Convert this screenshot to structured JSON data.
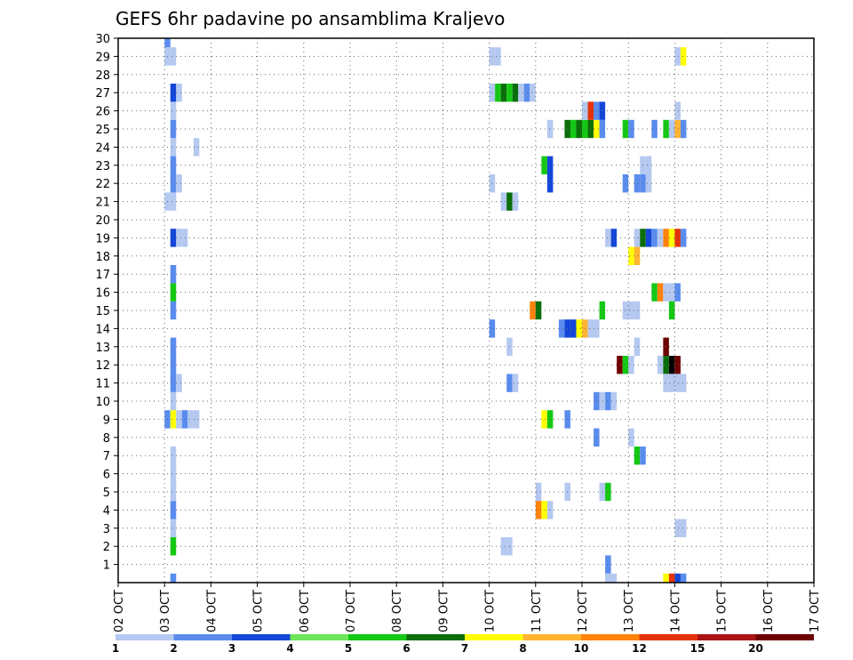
{
  "chart_data": {
    "type": "heatmap",
    "title": "GEFS 6hr padavine po ansamblima Kraljevo",
    "xlabel": "",
    "ylabel": "",
    "x_tick_labels": [
      "02 OCT",
      "03 OCT",
      "04 OCT",
      "05 OCT",
      "06 OCT",
      "07 OCT",
      "08 OCT",
      "09 OCT",
      "10 OCT",
      "11 OCT",
      "12 OCT",
      "13 OCT",
      "14 OCT",
      "15 OCT",
      "16 OCT",
      "17 OCT"
    ],
    "y_tick_labels": [
      "1",
      "2",
      "3",
      "4",
      "5",
      "6",
      "7",
      "8",
      "9",
      "10",
      "11",
      "12",
      "13",
      "14",
      "15",
      "16",
      "17",
      "18",
      "19",
      "20",
      "21",
      "22",
      "23",
      "24",
      "25",
      "26",
      "27",
      "28",
      "29",
      "30"
    ],
    "xlim": [
      0,
      60
    ],
    "ylim": [
      0,
      30
    ],
    "time_step_hours": 6,
    "members_axis": "ensemble member 0-30",
    "grid": true,
    "grid_style": "dotted",
    "colorbar": {
      "position": "bottom",
      "tick_labels": [
        "1",
        "2",
        "3",
        "4",
        "5",
        "6",
        "7",
        "8",
        "10",
        "12",
        "15",
        "20"
      ],
      "colors": [
        "#b4c8f0",
        "#5a8cee",
        "#1446d8",
        "#6ee65a",
        "#14c814",
        "#0a6e0a",
        "#ffff00",
        "#ffb432",
        "#ff820a",
        "#e6320a",
        "#aa1414",
        "#6e0000"
      ]
    },
    "cells": [
      {
        "x": 4.5,
        "y": 0,
        "v": 2
      },
      {
        "x": 4.5,
        "y": 2,
        "v": 5
      },
      {
        "x": 4.5,
        "y": 3,
        "v": 1
      },
      {
        "x": 4.5,
        "y": 4,
        "v": 2
      },
      {
        "x": 4.5,
        "y": 5,
        "v": 1
      },
      {
        "x": 4.5,
        "y": 6,
        "v": 1
      },
      {
        "x": 4.5,
        "y": 7,
        "v": 1
      },
      {
        "x": 4,
        "y": 9,
        "v": 2
      },
      {
        "x": 4.5,
        "y": 9,
        "v": 7
      },
      {
        "x": 5,
        "y": 9,
        "v": 1
      },
      {
        "x": 5.5,
        "y": 9,
        "v": 2
      },
      {
        "x": 6,
        "y": 9,
        "v": 1
      },
      {
        "x": 6.5,
        "y": 9,
        "v": 1
      },
      {
        "x": 4.5,
        "y": 10,
        "v": 1
      },
      {
        "x": 4.5,
        "y": 11,
        "v": 2
      },
      {
        "x": 5,
        "y": 11,
        "v": 1
      },
      {
        "x": 4.5,
        "y": 12,
        "v": 2
      },
      {
        "x": 4.5,
        "y": 13,
        "v": 2
      },
      {
        "x": 4.5,
        "y": 15,
        "v": 2
      },
      {
        "x": 4.5,
        "y": 16,
        "v": 5
      },
      {
        "x": 4.5,
        "y": 17,
        "v": 2
      },
      {
        "x": 4.5,
        "y": 19,
        "v": 3
      },
      {
        "x": 5,
        "y": 19,
        "v": 1
      },
      {
        "x": 5.5,
        "y": 19,
        "v": 1
      },
      {
        "x": 4,
        "y": 21,
        "v": 1
      },
      {
        "x": 4.5,
        "y": 21,
        "v": 1
      },
      {
        "x": 4.5,
        "y": 22,
        "v": 2
      },
      {
        "x": 5,
        "y": 22,
        "v": 1
      },
      {
        "x": 4.5,
        "y": 23,
        "v": 2
      },
      {
        "x": 4.5,
        "y": 24,
        "v": 1
      },
      {
        "x": 6.5,
        "y": 24,
        "v": 1
      },
      {
        "x": 4.5,
        "y": 25,
        "v": 2
      },
      {
        "x": 4.5,
        "y": 26,
        "v": 1
      },
      {
        "x": 4.5,
        "y": 27,
        "v": 3
      },
      {
        "x": 5,
        "y": 27,
        "v": 1
      },
      {
        "x": 4,
        "y": 29,
        "v": 1
      },
      {
        "x": 4.5,
        "y": 29,
        "v": 1
      },
      {
        "x": 4,
        "y": 30,
        "v": 2
      },
      {
        "x": 32,
        "y": 29,
        "v": 1
      },
      {
        "x": 32.5,
        "y": 29,
        "v": 1
      },
      {
        "x": 32,
        "y": 27,
        "v": 1
      },
      {
        "x": 32.5,
        "y": 27,
        "v": 5
      },
      {
        "x": 33,
        "y": 27,
        "v": 6
      },
      {
        "x": 33.5,
        "y": 27,
        "v": 5
      },
      {
        "x": 34,
        "y": 27,
        "v": 6
      },
      {
        "x": 34.5,
        "y": 27,
        "v": 1
      },
      {
        "x": 35,
        "y": 27,
        "v": 2
      },
      {
        "x": 35.5,
        "y": 27,
        "v": 1
      },
      {
        "x": 32,
        "y": 22,
        "v": 1
      },
      {
        "x": 33,
        "y": 21,
        "v": 1
      },
      {
        "x": 33.5,
        "y": 21,
        "v": 6
      },
      {
        "x": 34,
        "y": 21,
        "v": 1
      },
      {
        "x": 32,
        "y": 14,
        "v": 2
      },
      {
        "x": 33.5,
        "y": 13,
        "v": 1
      },
      {
        "x": 33.5,
        "y": 11,
        "v": 2
      },
      {
        "x": 34,
        "y": 11,
        "v": 1
      },
      {
        "x": 33,
        "y": 2,
        "v": 1
      },
      {
        "x": 33.5,
        "y": 2,
        "v": 1
      },
      {
        "x": 35.5,
        "y": 15,
        "v": 9
      },
      {
        "x": 36,
        "y": 15,
        "v": 6
      },
      {
        "x": 36,
        "y": 5,
        "v": 1
      },
      {
        "x": 36,
        "y": 4,
        "v": 9
      },
      {
        "x": 36.5,
        "y": 4,
        "v": 7
      },
      {
        "x": 37,
        "y": 4,
        "v": 1
      },
      {
        "x": 36.5,
        "y": 9,
        "v": 7
      },
      {
        "x": 37,
        "y": 9,
        "v": 5
      },
      {
        "x": 36.5,
        "y": 23,
        "v": 5
      },
      {
        "x": 37,
        "y": 23,
        "v": 3
      },
      {
        "x": 37,
        "y": 22,
        "v": 3
      },
      {
        "x": 37,
        "y": 25,
        "v": 1
      },
      {
        "x": 38,
        "y": 14,
        "v": 2
      },
      {
        "x": 38.5,
        "y": 14,
        "v": 3
      },
      {
        "x": 39,
        "y": 14,
        "v": 3
      },
      {
        "x": 39.5,
        "y": 14,
        "v": 7
      },
      {
        "x": 40,
        "y": 14,
        "v": 8
      },
      {
        "x": 40.5,
        "y": 14,
        "v": 1
      },
      {
        "x": 41,
        "y": 14,
        "v": 1
      },
      {
        "x": 38.5,
        "y": 9,
        "v": 2
      },
      {
        "x": 38.5,
        "y": 5,
        "v": 1
      },
      {
        "x": 38.5,
        "y": 25,
        "v": 6
      },
      {
        "x": 39,
        "y": 25,
        "v": 5
      },
      {
        "x": 39.5,
        "y": 25,
        "v": 6
      },
      {
        "x": 40,
        "y": 25,
        "v": 5
      },
      {
        "x": 40.5,
        "y": 25,
        "v": 6
      },
      {
        "x": 41,
        "y": 25,
        "v": 7
      },
      {
        "x": 41.5,
        "y": 25,
        "v": 2
      },
      {
        "x": 40,
        "y": 26,
        "v": 1
      },
      {
        "x": 40.5,
        "y": 26,
        "v": 10
      },
      {
        "x": 41,
        "y": 26,
        "v": 2
      },
      {
        "x": 41.5,
        "y": 26,
        "v": 3
      },
      {
        "x": 41,
        "y": 10,
        "v": 2
      },
      {
        "x": 41.5,
        "y": 10,
        "v": 1
      },
      {
        "x": 42,
        "y": 10,
        "v": 2
      },
      {
        "x": 42.5,
        "y": 10,
        "v": 1
      },
      {
        "x": 41,
        "y": 8,
        "v": 2
      },
      {
        "x": 42,
        "y": 1,
        "v": 2
      },
      {
        "x": 42,
        "y": 0,
        "v": 1
      },
      {
        "x": 42.5,
        "y": 0,
        "v": 1
      },
      {
        "x": 41.5,
        "y": 5,
        "v": 1
      },
      {
        "x": 42,
        "y": 5,
        "v": 5
      },
      {
        "x": 41.5,
        "y": 15,
        "v": 5
      },
      {
        "x": 42,
        "y": 19,
        "v": 1
      },
      {
        "x": 42.5,
        "y": 19,
        "v": 3
      },
      {
        "x": 43,
        "y": 12,
        "v": 12
      },
      {
        "x": 43.5,
        "y": 12,
        "v": 5
      },
      {
        "x": 44,
        "y": 12,
        "v": 1
      },
      {
        "x": 43.5,
        "y": 15,
        "v": 1
      },
      {
        "x": 44,
        "y": 15,
        "v": 1
      },
      {
        "x": 44.5,
        "y": 15,
        "v": 1
      },
      {
        "x": 44.5,
        "y": 13,
        "v": 1
      },
      {
        "x": 44,
        "y": 8,
        "v": 1
      },
      {
        "x": 44.5,
        "y": 7,
        "v": 5
      },
      {
        "x": 45,
        "y": 7,
        "v": 2
      },
      {
        "x": 44,
        "y": 18,
        "v": 7
      },
      {
        "x": 44.5,
        "y": 18,
        "v": 8
      },
      {
        "x": 43.5,
        "y": 22,
        "v": 2
      },
      {
        "x": 44.5,
        "y": 22,
        "v": 2
      },
      {
        "x": 45,
        "y": 22,
        "v": 2
      },
      {
        "x": 45.5,
        "y": 22,
        "v": 1
      },
      {
        "x": 45,
        "y": 23,
        "v": 1
      },
      {
        "x": 45.5,
        "y": 23,
        "v": 1
      },
      {
        "x": 43.5,
        "y": 25,
        "v": 5
      },
      {
        "x": 44,
        "y": 25,
        "v": 2
      },
      {
        "x": 46,
        "y": 25,
        "v": 2
      },
      {
        "x": 47,
        "y": 25,
        "v": 5
      },
      {
        "x": 47.5,
        "y": 25,
        "v": 1
      },
      {
        "x": 48,
        "y": 25,
        "v": 8
      },
      {
        "x": 48.5,
        "y": 25,
        "v": 2
      },
      {
        "x": 44.5,
        "y": 19,
        "v": 1
      },
      {
        "x": 45,
        "y": 19,
        "v": 6
      },
      {
        "x": 45.5,
        "y": 19,
        "v": 3
      },
      {
        "x": 46,
        "y": 19,
        "v": 2
      },
      {
        "x": 46.5,
        "y": 19,
        "v": 1
      },
      {
        "x": 47,
        "y": 19,
        "v": 9
      },
      {
        "x": 47.5,
        "y": 19,
        "v": 7
      },
      {
        "x": 48,
        "y": 19,
        "v": 10
      },
      {
        "x": 48.5,
        "y": 19,
        "v": 2
      },
      {
        "x": 46,
        "y": 16,
        "v": 5
      },
      {
        "x": 46.5,
        "y": 16,
        "v": 9
      },
      {
        "x": 47,
        "y": 16,
        "v": 1
      },
      {
        "x": 47.5,
        "y": 16,
        "v": 1
      },
      {
        "x": 48,
        "y": 16,
        "v": 2
      },
      {
        "x": 47.5,
        "y": 15,
        "v": 5
      },
      {
        "x": 47,
        "y": 13,
        "v": 12
      },
      {
        "x": 46.5,
        "y": 12,
        "v": 1
      },
      {
        "x": 47,
        "y": 12,
        "v": 6
      },
      {
        "x": 47.5,
        "y": 12,
        "v": 15
      },
      {
        "x": 48,
        "y": 12,
        "v": 12
      },
      {
        "x": 47,
        "y": 11,
        "v": 1
      },
      {
        "x": 47.5,
        "y": 11,
        "v": 1
      },
      {
        "x": 48,
        "y": 11,
        "v": 1
      },
      {
        "x": 48.5,
        "y": 11,
        "v": 1
      },
      {
        "x": 48,
        "y": 3,
        "v": 1
      },
      {
        "x": 48.5,
        "y": 3,
        "v": 1
      },
      {
        "x": 47,
        "y": 0,
        "v": 7
      },
      {
        "x": 47.5,
        "y": 0,
        "v": 10
      },
      {
        "x": 48,
        "y": 0,
        "v": 3
      },
      {
        "x": 48.5,
        "y": 0,
        "v": 2
      },
      {
        "x": 48,
        "y": 26,
        "v": 1
      },
      {
        "x": 48,
        "y": 29,
        "v": 1
      },
      {
        "x": 48.5,
        "y": 29,
        "v": 7
      }
    ]
  }
}
